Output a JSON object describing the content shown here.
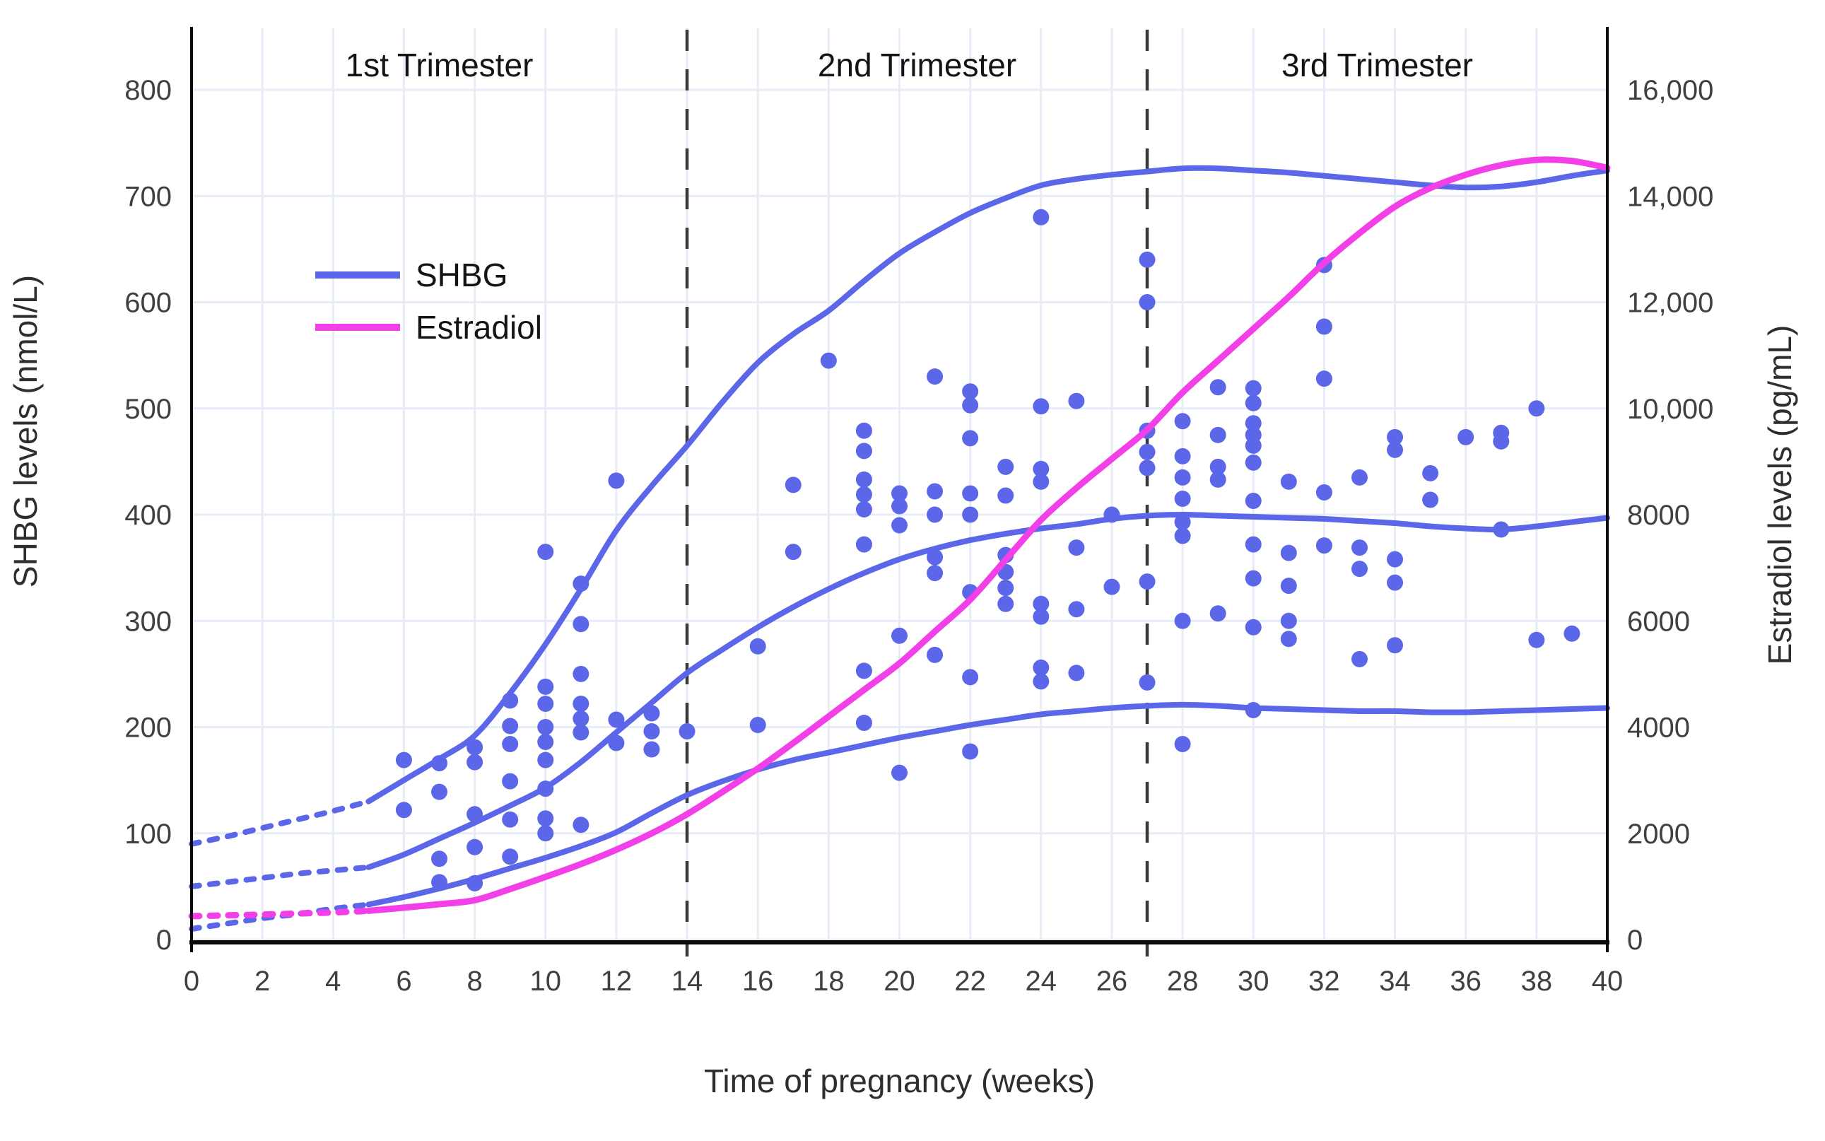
{
  "chart_data": {
    "type": "line",
    "subtype": "reference-curves-with-scatter",
    "x_axis": {
      "label": "Time of pregnancy (weeks)",
      "min": 0,
      "max": 40,
      "tick_step": 2,
      "ticks": [
        0,
        2,
        4,
        6,
        8,
        10,
        12,
        14,
        16,
        18,
        20,
        22,
        24,
        26,
        28,
        30,
        32,
        34,
        36,
        38,
        40
      ]
    },
    "y_axis_left": {
      "label": "SHBG levels (nmol/L)",
      "min": 0,
      "max": 858,
      "tick_step": 100,
      "ticks": [
        0,
        100,
        200,
        300,
        400,
        500,
        600,
        700,
        800
      ],
      "tick_labels": [
        "0",
        "100",
        "200",
        "300",
        "400",
        "500",
        "600",
        "700",
        "800"
      ]
    },
    "y_axis_right": {
      "label": "Estradiol levels (pg/mL)",
      "min": 0,
      "max": 17160,
      "tick_step": 2000,
      "ticks": [
        0,
        2000,
        4000,
        6000,
        8000,
        10000,
        12000,
        14000,
        16000
      ],
      "tick_labels": [
        "0",
        "2000",
        "4000",
        "6000",
        "8000",
        "10,000",
        "12,000",
        "14,000",
        "16,000"
      ]
    },
    "trimesters": {
      "labels": [
        "1st Trimester",
        "2nd Trimester",
        "3rd Trimester"
      ],
      "boundary_weeks": [
        14,
        27
      ],
      "label_center_weeks": [
        7,
        20.5,
        33.5
      ]
    },
    "legend": {
      "position": "upper-left-inside",
      "entries": [
        {
          "label": "SHBG",
          "color": "#5B67E8"
        },
        {
          "label": "Estradiol",
          "color": "#F23FE8"
        }
      ]
    },
    "grid": true,
    "dotted_until_week": 5,
    "series": [
      {
        "name": "shbg-upper-reference",
        "legend_group": "SHBG",
        "axis": "left",
        "color": "#5B67E8",
        "points": [
          [
            0,
            90
          ],
          [
            1,
            97
          ],
          [
            2,
            105
          ],
          [
            3,
            113
          ],
          [
            4,
            121
          ],
          [
            5,
            130
          ],
          [
            6,
            150
          ],
          [
            7,
            170
          ],
          [
            8,
            192
          ],
          [
            9,
            232
          ],
          [
            10,
            278
          ],
          [
            11,
            330
          ],
          [
            12,
            385
          ],
          [
            13,
            427
          ],
          [
            14,
            465
          ],
          [
            15,
            506
          ],
          [
            16,
            543
          ],
          [
            17,
            570
          ],
          [
            18,
            592
          ],
          [
            19,
            620
          ],
          [
            20,
            646
          ],
          [
            21,
            666
          ],
          [
            22,
            684
          ],
          [
            23,
            698
          ],
          [
            24,
            710
          ],
          [
            25,
            716
          ],
          [
            26,
            720
          ],
          [
            27,
            723
          ],
          [
            28,
            726
          ],
          [
            29,
            726
          ],
          [
            30,
            724
          ],
          [
            31,
            722
          ],
          [
            32,
            719
          ],
          [
            33,
            716
          ],
          [
            34,
            713
          ],
          [
            35,
            710
          ],
          [
            36,
            708
          ],
          [
            37,
            709
          ],
          [
            38,
            713
          ],
          [
            39,
            719
          ],
          [
            40,
            724
          ]
        ]
      },
      {
        "name": "shbg-median",
        "legend_group": "SHBG",
        "axis": "left",
        "color": "#5B67E8",
        "points": [
          [
            0,
            50
          ],
          [
            1,
            54
          ],
          [
            2,
            58
          ],
          [
            3,
            62
          ],
          [
            4,
            65
          ],
          [
            5,
            68
          ],
          [
            6,
            80
          ],
          [
            7,
            95
          ],
          [
            8,
            110
          ],
          [
            9,
            126
          ],
          [
            10,
            143
          ],
          [
            11,
            167
          ],
          [
            12,
            195
          ],
          [
            13,
            223
          ],
          [
            14,
            251
          ],
          [
            15,
            273
          ],
          [
            16,
            294
          ],
          [
            17,
            313
          ],
          [
            18,
            330
          ],
          [
            19,
            345
          ],
          [
            20,
            358
          ],
          [
            21,
            368
          ],
          [
            22,
            376
          ],
          [
            23,
            382
          ],
          [
            24,
            387
          ],
          [
            25,
            391
          ],
          [
            26,
            396
          ],
          [
            27,
            399
          ],
          [
            28,
            400
          ],
          [
            29,
            399
          ],
          [
            30,
            398
          ],
          [
            31,
            397
          ],
          [
            32,
            396
          ],
          [
            33,
            394
          ],
          [
            34,
            392
          ],
          [
            35,
            389
          ],
          [
            36,
            387
          ],
          [
            37,
            386
          ],
          [
            38,
            389
          ],
          [
            39,
            393
          ],
          [
            40,
            397
          ]
        ]
      },
      {
        "name": "shbg-lower-reference",
        "legend_group": "SHBG",
        "axis": "left",
        "color": "#5B67E8",
        "points": [
          [
            0,
            10
          ],
          [
            1,
            15
          ],
          [
            2,
            20
          ],
          [
            3,
            24
          ],
          [
            4,
            29
          ],
          [
            5,
            33
          ],
          [
            6,
            40
          ],
          [
            7,
            48
          ],
          [
            8,
            57
          ],
          [
            9,
            67
          ],
          [
            10,
            77
          ],
          [
            11,
            88
          ],
          [
            12,
            101
          ],
          [
            13,
            119
          ],
          [
            14,
            136
          ],
          [
            15,
            149
          ],
          [
            16,
            160
          ],
          [
            17,
            169
          ],
          [
            18,
            176
          ],
          [
            19,
            183
          ],
          [
            20,
            190
          ],
          [
            21,
            196
          ],
          [
            22,
            202
          ],
          [
            23,
            207
          ],
          [
            24,
            212
          ],
          [
            25,
            215
          ],
          [
            26,
            218
          ],
          [
            27,
            220
          ],
          [
            28,
            221
          ],
          [
            29,
            220
          ],
          [
            30,
            218
          ],
          [
            31,
            217
          ],
          [
            32,
            216
          ],
          [
            33,
            215
          ],
          [
            34,
            215
          ],
          [
            35,
            214
          ],
          [
            36,
            214
          ],
          [
            37,
            215
          ],
          [
            38,
            216
          ],
          [
            39,
            217
          ],
          [
            40,
            218
          ]
        ]
      },
      {
        "name": "estradiol-mean",
        "legend_group": "Estradiol",
        "axis": "right",
        "color": "#F23FE8",
        "points": [
          [
            0,
            440
          ],
          [
            1,
            455
          ],
          [
            2,
            470
          ],
          [
            3,
            490
          ],
          [
            4,
            510
          ],
          [
            5,
            540
          ],
          [
            6,
            600
          ],
          [
            7,
            665
          ],
          [
            8,
            740
          ],
          [
            9,
            950
          ],
          [
            10,
            1180
          ],
          [
            11,
            1420
          ],
          [
            12,
            1690
          ],
          [
            13,
            2000
          ],
          [
            14,
            2360
          ],
          [
            15,
            2780
          ],
          [
            16,
            3220
          ],
          [
            17,
            3700
          ],
          [
            18,
            4200
          ],
          [
            19,
            4700
          ],
          [
            20,
            5200
          ],
          [
            21,
            5800
          ],
          [
            22,
            6400
          ],
          [
            23,
            7150
          ],
          [
            24,
            7900
          ],
          [
            25,
            8500
          ],
          [
            26,
            9050
          ],
          [
            27,
            9600
          ],
          [
            28,
            10300
          ],
          [
            29,
            10900
          ],
          [
            30,
            11500
          ],
          [
            31,
            12100
          ],
          [
            32,
            12740
          ],
          [
            33,
            13300
          ],
          [
            34,
            13800
          ],
          [
            35,
            14150
          ],
          [
            36,
            14400
          ],
          [
            37,
            14580
          ],
          [
            38,
            14680
          ],
          [
            39,
            14660
          ],
          [
            40,
            14530
          ]
        ]
      }
    ],
    "scatter": {
      "name": "shbg-individual-measurements",
      "axis": "left",
      "color": "#5B67E8",
      "points": [
        [
          6,
          122
        ],
        [
          6,
          169
        ],
        [
          7,
          54
        ],
        [
          7,
          76
        ],
        [
          7,
          139
        ],
        [
          7,
          166
        ],
        [
          8,
          53
        ],
        [
          8,
          87
        ],
        [
          8,
          118
        ],
        [
          8,
          167
        ],
        [
          8,
          181
        ],
        [
          9,
          78
        ],
        [
          9,
          113
        ],
        [
          9,
          149
        ],
        [
          9,
          184
        ],
        [
          9,
          201
        ],
        [
          9,
          225
        ],
        [
          10,
          100
        ],
        [
          10,
          114
        ],
        [
          10,
          142
        ],
        [
          10,
          169
        ],
        [
          10,
          186
        ],
        [
          10,
          200
        ],
        [
          10,
          222
        ],
        [
          10,
          238
        ],
        [
          10,
          365
        ],
        [
          11,
          108
        ],
        [
          11,
          195
        ],
        [
          11,
          208
        ],
        [
          11,
          222
        ],
        [
          11,
          250
        ],
        [
          11,
          297
        ],
        [
          11,
          335
        ],
        [
          12,
          185
        ],
        [
          12,
          207
        ],
        [
          12,
          432
        ],
        [
          13,
          179
        ],
        [
          13,
          196
        ],
        [
          13,
          213
        ],
        [
          14,
          196
        ],
        [
          16,
          202
        ],
        [
          16,
          276
        ],
        [
          17,
          365
        ],
        [
          17,
          428
        ],
        [
          18,
          545
        ],
        [
          19,
          204
        ],
        [
          19,
          253
        ],
        [
          19,
          372
        ],
        [
          19,
          405
        ],
        [
          19,
          419
        ],
        [
          19,
          433
        ],
        [
          19,
          460
        ],
        [
          19,
          479
        ],
        [
          20,
          157
        ],
        [
          20,
          286
        ],
        [
          20,
          390
        ],
        [
          20,
          408
        ],
        [
          20,
          420
        ],
        [
          21,
          268
        ],
        [
          21,
          345
        ],
        [
          21,
          360
        ],
        [
          21,
          400
        ],
        [
          21,
          422
        ],
        [
          21,
          530
        ],
        [
          22,
          177
        ],
        [
          22,
          247
        ],
        [
          22,
          327
        ],
        [
          22,
          400
        ],
        [
          22,
          420
        ],
        [
          22,
          472
        ],
        [
          22,
          503
        ],
        [
          22,
          516
        ],
        [
          23,
          316
        ],
        [
          23,
          331
        ],
        [
          23,
          346
        ],
        [
          23,
          362
        ],
        [
          23,
          418
        ],
        [
          23,
          445
        ],
        [
          24,
          243
        ],
        [
          24,
          256
        ],
        [
          24,
          304
        ],
        [
          24,
          316
        ],
        [
          24,
          431
        ],
        [
          24,
          443
        ],
        [
          24,
          502
        ],
        [
          24,
          680
        ],
        [
          25,
          251
        ],
        [
          25,
          311
        ],
        [
          25,
          369
        ],
        [
          25,
          507
        ],
        [
          26,
          332
        ],
        [
          26,
          400
        ],
        [
          27,
          242
        ],
        [
          27,
          337
        ],
        [
          27,
          444
        ],
        [
          27,
          459
        ],
        [
          27,
          479
        ],
        [
          27,
          600
        ],
        [
          27,
          640
        ],
        [
          28,
          184
        ],
        [
          28,
          300
        ],
        [
          28,
          380
        ],
        [
          28,
          393
        ],
        [
          28,
          415
        ],
        [
          28,
          435
        ],
        [
          28,
          455
        ],
        [
          28,
          488
        ],
        [
          29,
          307
        ],
        [
          29,
          433
        ],
        [
          29,
          445
        ],
        [
          29,
          475
        ],
        [
          29,
          520
        ],
        [
          30,
          216
        ],
        [
          30,
          294
        ],
        [
          30,
          340
        ],
        [
          30,
          372
        ],
        [
          30,
          413
        ],
        [
          30,
          449
        ],
        [
          30,
          465
        ],
        [
          30,
          475
        ],
        [
          30,
          486
        ],
        [
          30,
          505
        ],
        [
          30,
          519
        ],
        [
          31,
          283
        ],
        [
          31,
          300
        ],
        [
          31,
          333
        ],
        [
          31,
          364
        ],
        [
          31,
          431
        ],
        [
          32,
          371
        ],
        [
          32,
          421
        ],
        [
          32,
          528
        ],
        [
          32,
          577
        ],
        [
          32,
          635
        ],
        [
          33,
          264
        ],
        [
          33,
          349
        ],
        [
          33,
          369
        ],
        [
          33,
          435
        ],
        [
          34,
          277
        ],
        [
          34,
          336
        ],
        [
          34,
          358
        ],
        [
          34,
          461
        ],
        [
          34,
          473
        ],
        [
          35,
          414
        ],
        [
          35,
          439
        ],
        [
          36,
          473
        ],
        [
          37,
          386
        ],
        [
          37,
          469
        ],
        [
          37,
          477
        ],
        [
          38,
          282
        ],
        [
          38,
          500
        ],
        [
          39,
          288
        ]
      ]
    },
    "colors": {
      "shbg": "#5B67E8",
      "estradiol": "#F23FE8",
      "gridline": "#E8ECF7",
      "separator": "#3A3A3A",
      "axis_line": "#0A0A0A",
      "tick_text": "#3F3F44",
      "title_text": "#2E2E31",
      "annotation_text": "#141416",
      "background": "#FFFFFF"
    }
  }
}
